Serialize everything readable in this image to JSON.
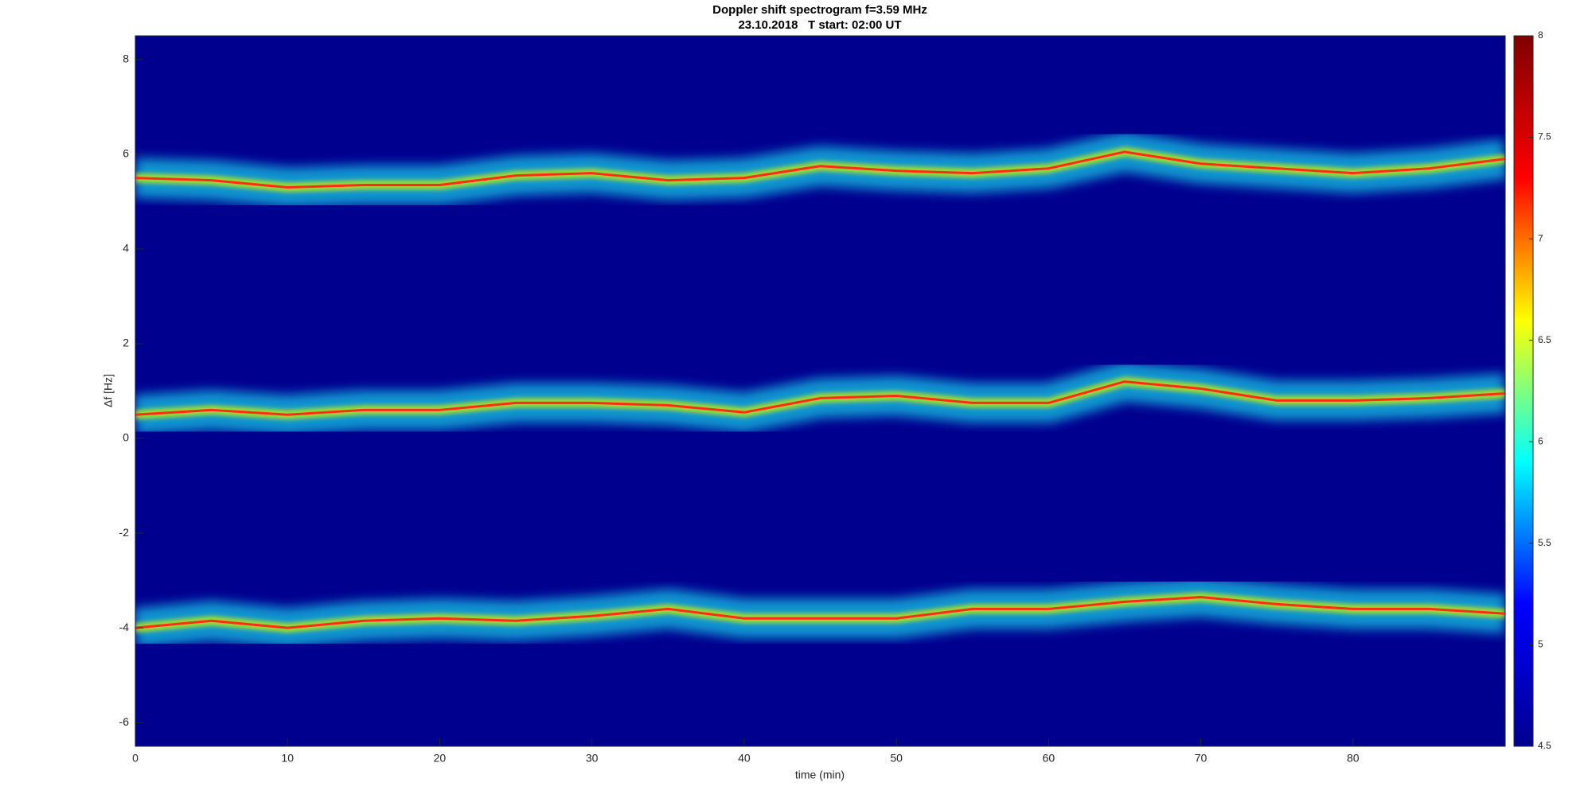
{
  "chart_data": {
    "type": "spectrogram",
    "title": "Doppler shift spectrogram f=3.59 MHz",
    "subtitle": "23.10.2018   T start: 02:00 UT",
    "x_label": "time (min)",
    "y_label": "Δf [Hz]",
    "xlim": [
      0,
      90
    ],
    "xticks": [
      0,
      10,
      20,
      30,
      40,
      50,
      60,
      70,
      80
    ],
    "ylim": [
      -6.5,
      8.5
    ],
    "yticks": [
      -6,
      -4,
      -2,
      0,
      2,
      4,
      6,
      8
    ],
    "background_color": "#00008f",
    "x": [
      0,
      5,
      10,
      15,
      20,
      25,
      30,
      35,
      40,
      45,
      50,
      55,
      60,
      65,
      70,
      75,
      80,
      85,
      90
    ],
    "series": [
      {
        "color": "#ff2a1a",
        "band_color": "#19c8e6",
        "values": [
          5.5,
          5.45,
          5.3,
          5.35,
          5.35,
          5.55,
          5.6,
          5.45,
          5.5,
          5.75,
          5.65,
          5.6,
          5.7,
          6.05,
          5.8,
          5.7,
          5.6,
          5.7,
          5.9
        ]
      },
      {
        "color": "#ff2a1a",
        "band_color": "#19c8e6",
        "values": [
          0.5,
          0.6,
          0.5,
          0.6,
          0.6,
          0.75,
          0.75,
          0.7,
          0.55,
          0.85,
          0.9,
          0.75,
          0.75,
          1.2,
          1.05,
          0.8,
          0.8,
          0.85,
          0.95
        ]
      },
      {
        "color": "#ff2a1a",
        "band_color": "#19c8e6",
        "values": [
          -4.0,
          -3.85,
          -4.0,
          -3.85,
          -3.8,
          -3.85,
          -3.75,
          -3.6,
          -3.8,
          -3.8,
          -3.8,
          -3.6,
          -3.6,
          -3.45,
          -3.35,
          -3.5,
          -3.6,
          -3.6,
          -3.7
        ]
      }
    ],
    "colorbar": {
      "lim": [
        4.5,
        8
      ],
      "ticks": [
        4.5,
        5,
        5.5,
        6,
        6.5,
        7,
        7.5,
        8
      ],
      "colors": [
        "#00008f",
        "#0000ff",
        "#00ffff",
        "#ffff00",
        "#ff0000",
        "#800000"
      ]
    }
  }
}
